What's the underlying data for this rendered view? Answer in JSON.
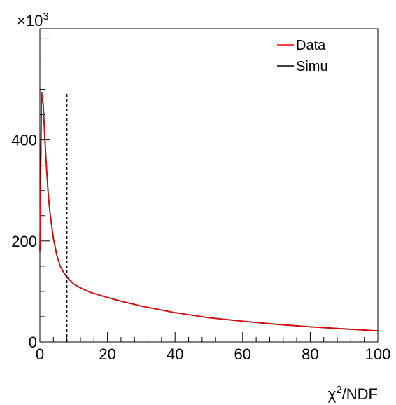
{
  "chart_data": {
    "type": "line",
    "title": "",
    "xlabel_base": "χ",
    "xlabel_sup": "2",
    "xlabel_rest": "/NDF",
    "ylabel": "",
    "y_multiplier_base": "×10",
    "y_multiplier_exp": "3",
    "xlim": [
      0,
      100
    ],
    "ylim": [
      0,
      620
    ],
    "x_ticks": [
      0,
      20,
      40,
      60,
      80,
      100
    ],
    "x_tick_labels": [
      "0",
      "20",
      "40",
      "60",
      "80",
      "100"
    ],
    "y_ticks": [
      0,
      200,
      400
    ],
    "y_tick_labels": [
      "0",
      "200",
      "400"
    ],
    "grid": false,
    "legend_position": "top-right",
    "cut_line_x": 8,
    "cut_line_ymax": 495,
    "series": [
      {
        "name": "Data",
        "color": "#ff0000",
        "x": [
          0,
          0.5,
          1,
          1.5,
          2,
          2.5,
          3,
          4,
          5,
          6,
          7,
          8,
          10,
          12,
          15,
          20,
          25,
          30,
          40,
          50,
          60,
          70,
          80,
          90,
          100
        ],
        "values": [
          180,
          495,
          470,
          400,
          340,
          290,
          255,
          205,
          172,
          150,
          138,
          128,
          115,
          107,
          98,
          88,
          79,
          71,
          58,
          48,
          41,
          35,
          30,
          26,
          22
        ]
      },
      {
        "name": "Simu",
        "color": "#000000",
        "x": [
          0,
          0.5,
          1,
          1.5,
          2,
          2.5,
          3,
          4,
          5,
          6,
          7,
          8,
          10,
          12,
          15,
          20,
          25,
          30,
          40,
          50,
          60,
          70,
          80,
          90,
          100
        ],
        "values": [
          180,
          495,
          470,
          400,
          340,
          290,
          255,
          205,
          172,
          150,
          138,
          128,
          115,
          107,
          98,
          88,
          79,
          71,
          58,
          48,
          41,
          35,
          30,
          26,
          22
        ]
      }
    ]
  }
}
